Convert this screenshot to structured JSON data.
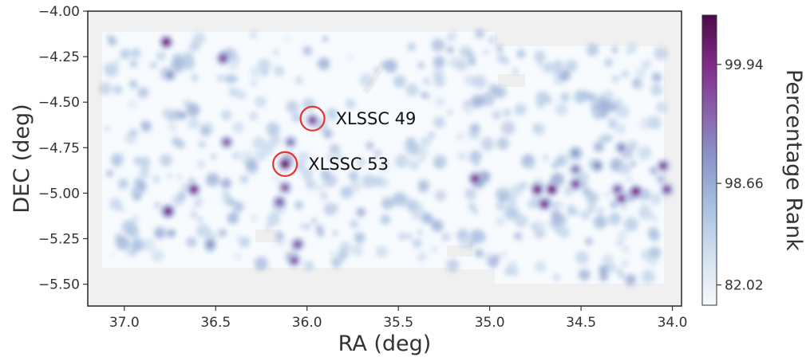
{
  "chart_data": {
    "type": "heatmap",
    "title": "",
    "xlabel": "RA (deg)",
    "ylabel": "DEC (deg)",
    "colorbar_label": "Percentage Rank",
    "x_reversed": true,
    "xlim": [
      37.2,
      33.95
    ],
    "ylim": [
      -5.62,
      -4.0
    ],
    "xticks": [
      {
        "value": 37.0,
        "label": "37.0"
      },
      {
        "value": 36.5,
        "label": "36.5"
      },
      {
        "value": 36.0,
        "label": "36.0"
      },
      {
        "value": 35.5,
        "label": "35.5"
      },
      {
        "value": 35.0,
        "label": "35.0"
      },
      {
        "value": 34.5,
        "label": "34.5"
      },
      {
        "value": 34.0,
        "label": "34.0"
      }
    ],
    "yticks": [
      {
        "value": -4.0,
        "label": "−4.00"
      },
      {
        "value": -4.25,
        "label": "−4.25"
      },
      {
        "value": -4.5,
        "label": "−4.50"
      },
      {
        "value": -4.75,
        "label": "−4.75"
      },
      {
        "value": -5.0,
        "label": "−5.00"
      },
      {
        "value": -5.25,
        "label": "−5.25"
      },
      {
        "value": -5.5,
        "label": "−5.50"
      }
    ],
    "colorbar": {
      "colors": [
        "#f5fafd",
        "#d3e1f0",
        "#a9c2e1",
        "#8b98c9",
        "#8a61ac",
        "#7f2b87",
        "#4a0a49"
      ],
      "ticks": [
        {
          "label": "99.94",
          "frac": 0.83
        },
        {
          "label": "98.66",
          "frac": 0.42
        },
        {
          "label": "82.02",
          "frac": 0.07
        }
      ]
    },
    "grid": false,
    "annotations": [
      {
        "text": "XLSSC 49",
        "ra": 35.97,
        "dec": -4.59,
        "color": "#e8332f"
      },
      {
        "text": "XLSSC 53",
        "ra": 36.12,
        "dec": -4.84,
        "color": "#e8332f"
      }
    ],
    "hotspots": [
      {
        "ra": 36.77,
        "dec": -4.17,
        "level": 0.9
      },
      {
        "ra": 36.46,
        "dec": -4.26,
        "level": 0.75
      },
      {
        "ra": 36.75,
        "dec": -4.35,
        "level": 0.5
      },
      {
        "ra": 36.44,
        "dec": -4.72,
        "level": 0.7
      },
      {
        "ra": 36.12,
        "dec": -4.84,
        "level": 0.95
      },
      {
        "ra": 36.09,
        "dec": -4.72,
        "level": 0.6
      },
      {
        "ra": 35.97,
        "dec": -4.6,
        "level": 0.75
      },
      {
        "ra": 36.62,
        "dec": -4.98,
        "level": 0.85
      },
      {
        "ra": 36.76,
        "dec": -5.1,
        "level": 0.85
      },
      {
        "ra": 36.15,
        "dec": -5.05,
        "level": 0.7
      },
      {
        "ra": 36.12,
        "dec": -4.97,
        "level": 0.7
      },
      {
        "ra": 36.05,
        "dec": -5.28,
        "level": 0.7
      },
      {
        "ra": 36.07,
        "dec": -5.37,
        "level": 0.7
      },
      {
        "ra": 36.53,
        "dec": -5.28,
        "level": 0.55
      },
      {
        "ra": 35.08,
        "dec": -4.92,
        "level": 0.8
      },
      {
        "ra": 34.74,
        "dec": -4.98,
        "level": 0.85
      },
      {
        "ra": 34.66,
        "dec": -4.98,
        "level": 0.9
      },
      {
        "ra": 34.7,
        "dec": -5.06,
        "level": 0.8
      },
      {
        "ra": 34.53,
        "dec": -4.87,
        "level": 0.6
      },
      {
        "ra": 34.53,
        "dec": -4.95,
        "level": 0.75
      },
      {
        "ra": 34.41,
        "dec": -4.85,
        "level": 0.55
      },
      {
        "ra": 34.3,
        "dec": -4.98,
        "level": 0.7
      },
      {
        "ra": 34.28,
        "dec": -5.03,
        "level": 0.75
      },
      {
        "ra": 34.2,
        "dec": -4.99,
        "level": 0.85
      },
      {
        "ra": 34.05,
        "dec": -4.85,
        "level": 0.75
      },
      {
        "ra": 34.03,
        "dec": -4.98,
        "level": 0.75
      },
      {
        "ra": 34.28,
        "dec": -4.75,
        "level": 0.55
      },
      {
        "ra": 34.53,
        "dec": -4.78,
        "level": 0.5
      }
    ]
  }
}
